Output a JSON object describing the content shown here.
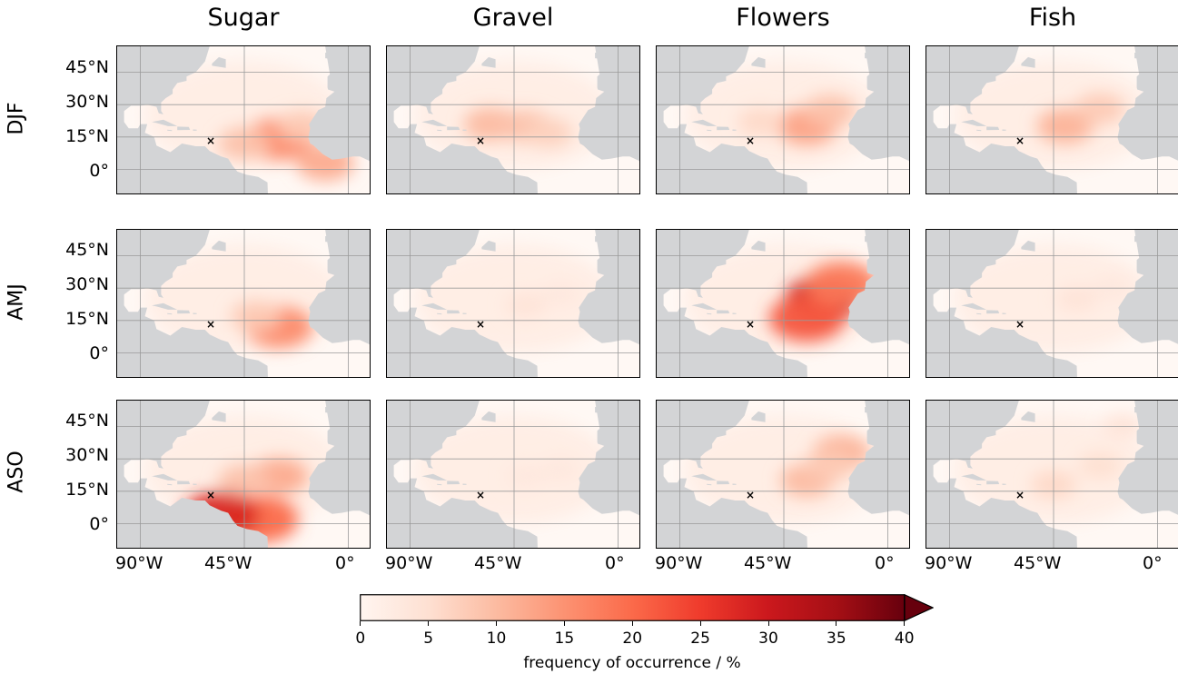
{
  "columns": [
    "Sugar",
    "Gravel",
    "Flowers",
    "Fish"
  ],
  "rows": [
    "DJF",
    "AMJ",
    "ASO"
  ],
  "lat_labels": [
    "45°N",
    "30°N",
    "15°N",
    "0°"
  ],
  "lon_labels": [
    "90°W",
    "45°W",
    "0°"
  ],
  "colorbar": {
    "label": "frequency of occurrence / %",
    "ticks": [
      "0",
      "5",
      "10",
      "15",
      "20",
      "25",
      "30",
      "35",
      "40"
    ],
    "min": 0,
    "max": 40,
    "extend": "max",
    "colormap": "Reds"
  },
  "marker": {
    "symbol": "×",
    "lon_deg": -59.5,
    "lat_deg": 13.2
  },
  "colors": {
    "land": "#d3d4d6",
    "grid": "#9a9a9a",
    "ocean_base": "#fff8f4"
  },
  "map_data": [
    {
      "row": "DJF",
      "column": "Sugar",
      "hotspots": [
        {
          "lon": -30,
          "lat": 14,
          "value": 16
        },
        {
          "lon": -45,
          "lat": 12,
          "value": 9
        },
        {
          "lon": -10,
          "lat": 3,
          "value": 12
        },
        {
          "lon": -20,
          "lat": 20,
          "value": 8
        }
      ]
    },
    {
      "row": "DJF",
      "column": "Gravel",
      "hotspots": [
        {
          "lon": -55,
          "lat": 21,
          "value": 10
        },
        {
          "lon": -40,
          "lat": 20,
          "value": 9
        },
        {
          "lon": -30,
          "lat": 17,
          "value": 7
        }
      ]
    },
    {
      "row": "DJF",
      "column": "Flowers",
      "hotspots": [
        {
          "lon": -35,
          "lat": 20,
          "value": 13
        },
        {
          "lon": -25,
          "lat": 27,
          "value": 9
        },
        {
          "lon": -55,
          "lat": 22,
          "value": 6
        }
      ]
    },
    {
      "row": "DJF",
      "column": "Fish",
      "hotspots": [
        {
          "lon": -40,
          "lat": 20,
          "value": 11
        },
        {
          "lon": -25,
          "lat": 28,
          "value": 8
        }
      ]
    },
    {
      "row": "AMJ",
      "column": "Sugar",
      "hotspots": [
        {
          "lon": -30,
          "lat": 12,
          "value": 16
        },
        {
          "lon": -40,
          "lat": 17,
          "value": 8
        }
      ]
    },
    {
      "row": "AMJ",
      "column": "Gravel",
      "hotspots": [
        {
          "lon": -40,
          "lat": 22,
          "value": 4
        },
        {
          "lon": -25,
          "lat": 27,
          "value": 3
        }
      ]
    },
    {
      "row": "AMJ",
      "column": "Flowers",
      "hotspots": [
        {
          "lon": -28,
          "lat": 25,
          "value": 30
        },
        {
          "lon": -35,
          "lat": 16,
          "value": 22
        },
        {
          "lon": -20,
          "lat": 32,
          "value": 18
        }
      ]
    },
    {
      "row": "AMJ",
      "column": "Fish",
      "hotspots": [
        {
          "lon": -35,
          "lat": 25,
          "value": 4
        },
        {
          "lon": -20,
          "lat": 30,
          "value": 3
        }
      ]
    },
    {
      "row": "ASO",
      "column": "Sugar",
      "hotspots": [
        {
          "lon": -30,
          "lat": 22,
          "value": 12
        },
        {
          "lon": -45,
          "lat": 20,
          "value": 9
        },
        {
          "lon": -38,
          "lat": 2,
          "value": 20
        },
        {
          "lon": -55,
          "lat": 4,
          "value": 28
        }
      ]
    },
    {
      "row": "ASO",
      "column": "Gravel",
      "hotspots": [
        {
          "lon": -40,
          "lat": 22,
          "value": 3
        },
        {
          "lon": -25,
          "lat": 25,
          "value": 3
        }
      ]
    },
    {
      "row": "ASO",
      "column": "Flowers",
      "hotspots": [
        {
          "lon": -20,
          "lat": 33,
          "value": 11
        },
        {
          "lon": -35,
          "lat": 20,
          "value": 10
        },
        {
          "lon": -25,
          "lat": 27,
          "value": 8
        }
      ]
    },
    {
      "row": "ASO",
      "column": "Fish",
      "hotspots": [
        {
          "lon": -45,
          "lat": 18,
          "value": 6
        },
        {
          "lon": -25,
          "lat": 27,
          "value": 5
        },
        {
          "lon": -15,
          "lat": 45,
          "value": 4
        }
      ]
    }
  ]
}
